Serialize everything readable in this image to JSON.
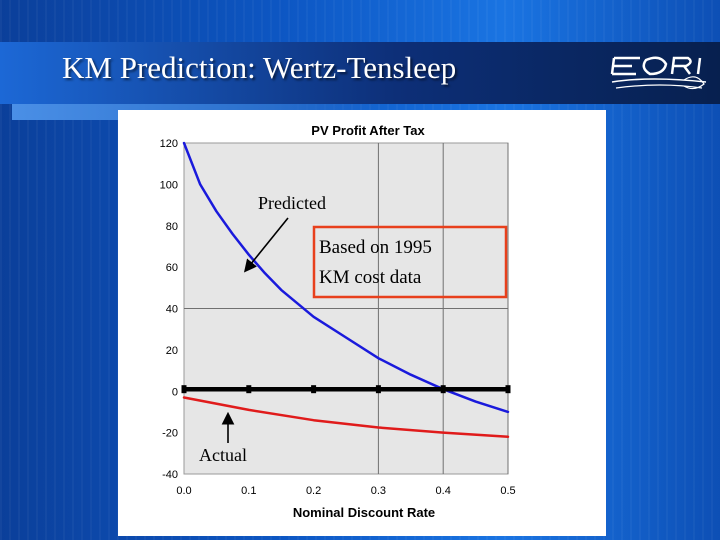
{
  "slide": {
    "title": "KM Prediction: Wertz-Tensleep",
    "logo_icon": "eori-logo"
  },
  "chart_data": {
    "type": "line",
    "title": "PV Profit After Tax",
    "xlabel": "Nominal Discount Rate",
    "ylabel": "",
    "xlim": [
      0.0,
      0.5
    ],
    "ylim": [
      -40,
      120
    ],
    "x_ticks": [
      "0.0",
      "0.1",
      "0.2",
      "0.3",
      "0.4",
      "0.5"
    ],
    "y_ticks": [
      "120",
      "100",
      "80",
      "60",
      "40",
      "20",
      "0",
      "-20",
      "-40"
    ],
    "grid": "gridlines at x = 0.3, 0.4, 0.5 and y = 40",
    "plot_background": "#e6e6e6",
    "series": [
      {
        "color": "#1a1adc",
        "x": [
          0.0,
          0.025,
          0.05,
          0.075,
          0.1,
          0.125,
          0.15,
          0.2,
          0.25,
          0.3,
          0.35,
          0.4,
          0.45,
          0.5
        ],
        "values": [
          120,
          100,
          87,
          76,
          66,
          57,
          49,
          36,
          26,
          16,
          8,
          1,
          -5,
          -10
        ]
      },
      {
        "color": "#e01b1b",
        "x": [
          0.0,
          0.1,
          0.2,
          0.3,
          0.4,
          0.5
        ],
        "values": [
          -3,
          -9,
          -14,
          -17.5,
          -20,
          -22
        ]
      },
      {
        "color": "#000000",
        "x": [
          0.0,
          0.1,
          0.2,
          0.3,
          0.4,
          0.5
        ],
        "values": [
          1,
          1,
          1,
          1,
          1,
          1
        ]
      }
    ],
    "annotations": {
      "predicted_label": "Predicted",
      "actual_label": "Actual",
      "box_line1": "Based on 1995",
      "box_line2": "KM cost data",
      "box_color": "#e8401c"
    }
  }
}
